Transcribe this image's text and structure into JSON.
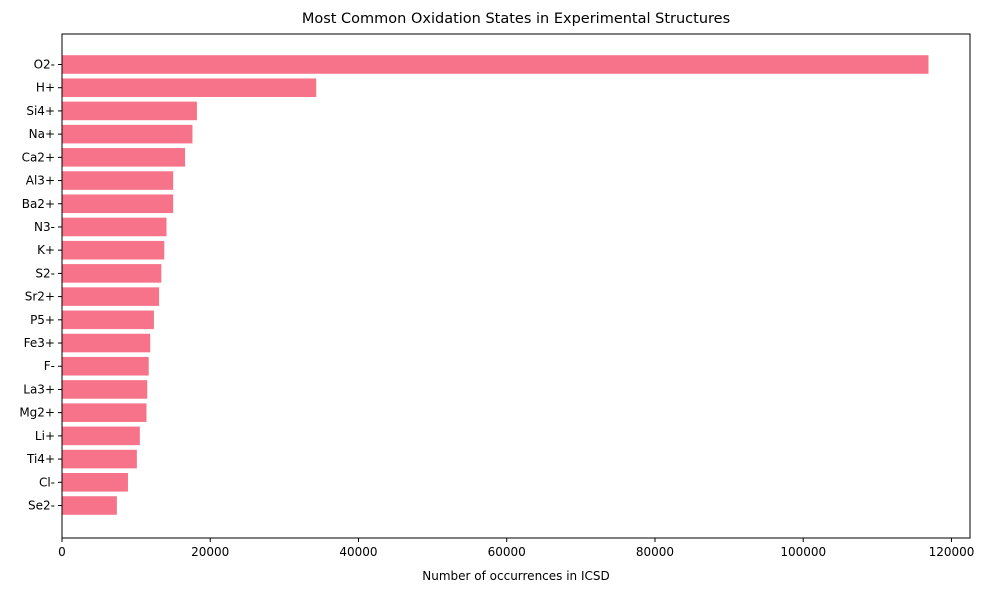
{
  "chart_data": {
    "type": "bar",
    "orientation": "horizontal",
    "title": "Most Common Oxidation States in Experimental Structures",
    "xlabel": "Number of occurrences in ICSD",
    "ylabel": "",
    "xlim": [
      0,
      122500
    ],
    "xticks": [
      0,
      20000,
      40000,
      60000,
      80000,
      100000,
      120000
    ],
    "xtick_labels": [
      "0",
      "20000",
      "40000",
      "60000",
      "80000",
      "100000",
      "120000"
    ],
    "grid": false,
    "legend": "none",
    "bar_color": "#f7738a",
    "categories": [
      "O2-",
      "H+",
      "Si4+",
      "Na+",
      "Ca2+",
      "Al3+",
      "Ba2+",
      "N3-",
      "K+",
      "S2-",
      "Sr2+",
      "P5+",
      "Fe3+",
      "F-",
      "La3+",
      "Mg2+",
      "Li+",
      "Ti4+",
      "Cl-",
      "Se2-"
    ],
    "values": [
      116900,
      34300,
      18200,
      17600,
      16600,
      15000,
      15000,
      14100,
      13800,
      13400,
      13100,
      12400,
      11900,
      11700,
      11500,
      11400,
      10500,
      10100,
      8900,
      7400
    ]
  }
}
